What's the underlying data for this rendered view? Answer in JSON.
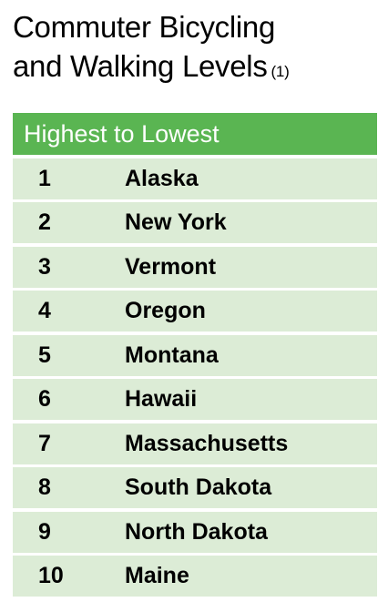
{
  "title": {
    "line1": "Commuter Bicycling",
    "line2": "and Walking Levels",
    "footnote": "(1)"
  },
  "table": {
    "header": "Highest to Lowest",
    "rows": [
      {
        "rank": "1",
        "state": "Alaska"
      },
      {
        "rank": "2",
        "state": "New York"
      },
      {
        "rank": "3",
        "state": "Vermont"
      },
      {
        "rank": "4",
        "state": "Oregon"
      },
      {
        "rank": "5",
        "state": "Montana"
      },
      {
        "rank": "6",
        "state": "Hawaii"
      },
      {
        "rank": "7",
        "state": "Massachusetts"
      },
      {
        "rank": "8",
        "state": "South Dakota"
      },
      {
        "rank": "9",
        "state": "North Dakota"
      },
      {
        "rank": "10",
        "state": "Maine"
      }
    ]
  }
}
